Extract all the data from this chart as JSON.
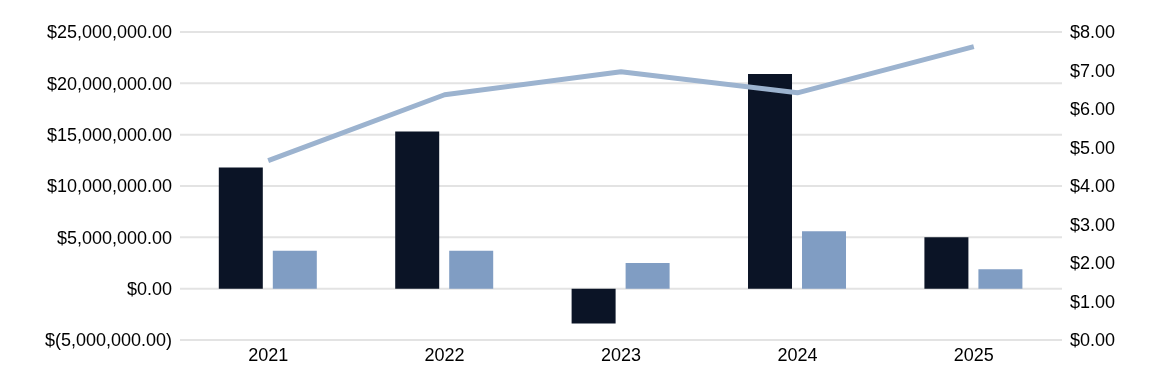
{
  "chart_data": {
    "type": "bar",
    "categories": [
      "2021",
      "2022",
      "2023",
      "2024",
      "2025"
    ],
    "series": [
      {
        "color": "#0b1426",
        "values": [
          11800000,
          15300000,
          -3400000,
          20900000,
          5000000
        ]
      },
      {
        "color": "#809dc3",
        "values": [
          3700000,
          3700000,
          2500000,
          5600000,
          1900000
        ]
      },
      {
        "type": "line",
        "axis": "y2",
        "color": "#9cb3cf",
        "values": [
          4.66,
          6.37,
          6.97,
          6.42,
          7.62
        ]
      }
    ],
    "ylim": [
      -5000000,
      25000000
    ],
    "yticks": [
      {
        "value": -5000000,
        "label": "$(5,000,000.00)"
      },
      {
        "value": 0,
        "label": "$0.00"
      },
      {
        "value": 5000000,
        "label": "$5,000,000.00"
      },
      {
        "value": 10000000,
        "label": "$10,000,000.00"
      },
      {
        "value": 15000000,
        "label": "$15,000,000.00"
      },
      {
        "value": 20000000,
        "label": "$20,000,000.00"
      },
      {
        "value": 25000000,
        "label": "$25,000,000.00"
      }
    ],
    "y2lim": [
      0,
      8
    ],
    "y2ticks": [
      {
        "value": 0,
        "label": "$0.00"
      },
      {
        "value": 1,
        "label": "$1.00"
      },
      {
        "value": 2,
        "label": "$2.00"
      },
      {
        "value": 3,
        "label": "$3.00"
      },
      {
        "value": 4,
        "label": "$4.00"
      },
      {
        "value": 5,
        "label": "$5.00"
      },
      {
        "value": 6,
        "label": "$6.00"
      },
      {
        "value": 7,
        "label": "$7.00"
      },
      {
        "value": 8,
        "label": "$8.00"
      }
    ],
    "grid": "y",
    "marker": "none"
  }
}
